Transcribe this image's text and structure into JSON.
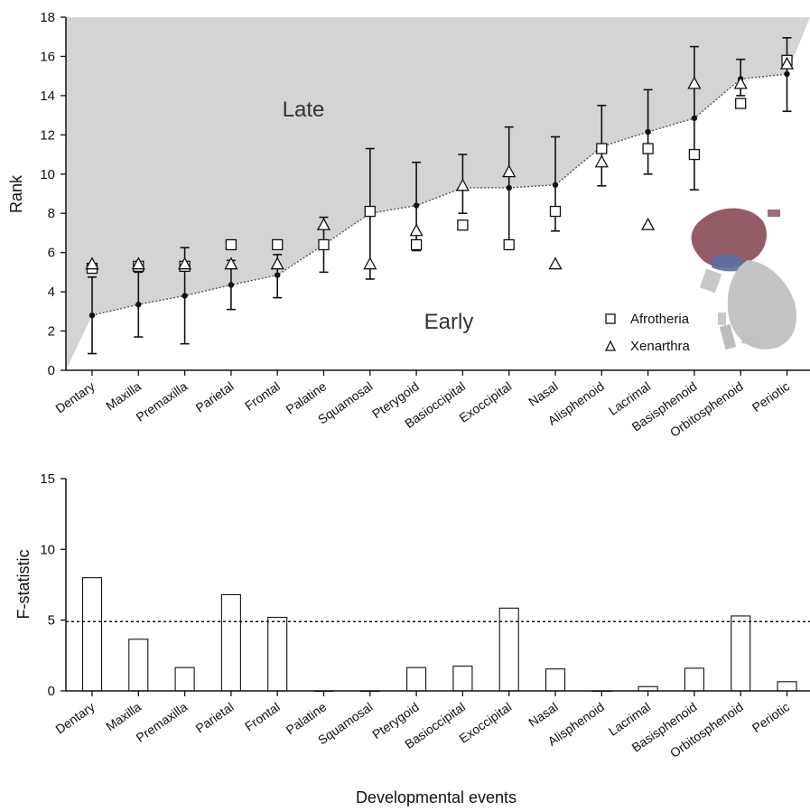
{
  "chart_data": [
    {
      "type": "scatter",
      "ylabel": "Rank",
      "ylim": [
        0,
        18
      ],
      "yticks": [
        0,
        2,
        4,
        6,
        8,
        10,
        12,
        14,
        16,
        18
      ],
      "categories": [
        "Dentary",
        "Maxilla",
        "Premaxilla",
        "Parietal",
        "Frontal",
        "Palatine",
        "Squamosal",
        "Pterygoid",
        "Basioccipital",
        "Exoccipital",
        "Nasal",
        "Alisphenoid",
        "Lacrimal",
        "Basisphenoid",
        "Orbitosphenoid",
        "Periotic"
      ],
      "region_labels": {
        "upper": "Late",
        "lower": "Early"
      },
      "mean_rank": [
        2.8,
        3.35,
        3.8,
        4.35,
        4.85,
        6.4,
        8.0,
        8.4,
        9.3,
        9.3,
        9.45,
        11.4,
        12.15,
        12.85,
        14.85,
        15.1
      ],
      "error_low": [
        0.85,
        1.7,
        1.35,
        3.1,
        3.7,
        5.0,
        4.65,
        6.1,
        8.0,
        6.2,
        7.1,
        9.4,
        10.0,
        9.2,
        14.0,
        13.2
      ],
      "error_high": [
        4.75,
        5.0,
        6.25,
        5.6,
        5.9,
        7.8,
        11.3,
        10.6,
        11.0,
        12.4,
        11.9,
        13.5,
        14.3,
        16.5,
        15.85,
        16.95
      ],
      "series": [
        {
          "name": "Afrotheria",
          "marker": "square",
          "values": [
            5.2,
            5.3,
            5.3,
            6.4,
            6.4,
            6.4,
            8.1,
            6.4,
            7.4,
            6.4,
            8.1,
            11.3,
            11.3,
            11.0,
            13.6,
            15.8
          ]
        },
        {
          "name": "Xenarthra",
          "marker": "triangle",
          "values": [
            5.4,
            5.4,
            5.4,
            5.4,
            5.4,
            7.4,
            5.4,
            7.1,
            9.4,
            10.1,
            5.4,
            10.6,
            7.4,
            14.6,
            14.6,
            15.6
          ]
        }
      ],
      "shading_color": "#d4d4d4",
      "legend_position": "bottom-right"
    },
    {
      "type": "bar",
      "xlabel": "Developmental events",
      "ylabel": "F-statistic",
      "ylim": [
        0,
        15
      ],
      "yticks": [
        0,
        5,
        10,
        15
      ],
      "categories": [
        "Dentary",
        "Maxilla",
        "Premaxilla",
        "Parietal",
        "Frontal",
        "Palatine",
        "Squamosal",
        "Pterygoid",
        "Basioccipital",
        "Exoccipital",
        "Nasal",
        "Alisphenoid",
        "Lacrimal",
        "Basisphenoid",
        "Orbitosphenoid",
        "Periotic"
      ],
      "values": [
        8.0,
        3.65,
        1.65,
        6.8,
        5.2,
        0.0,
        0.0,
        1.65,
        1.75,
        5.85,
        1.55,
        0.0,
        0.3,
        1.6,
        5.3,
        0.65
      ],
      "threshold": 4.9
    }
  ]
}
